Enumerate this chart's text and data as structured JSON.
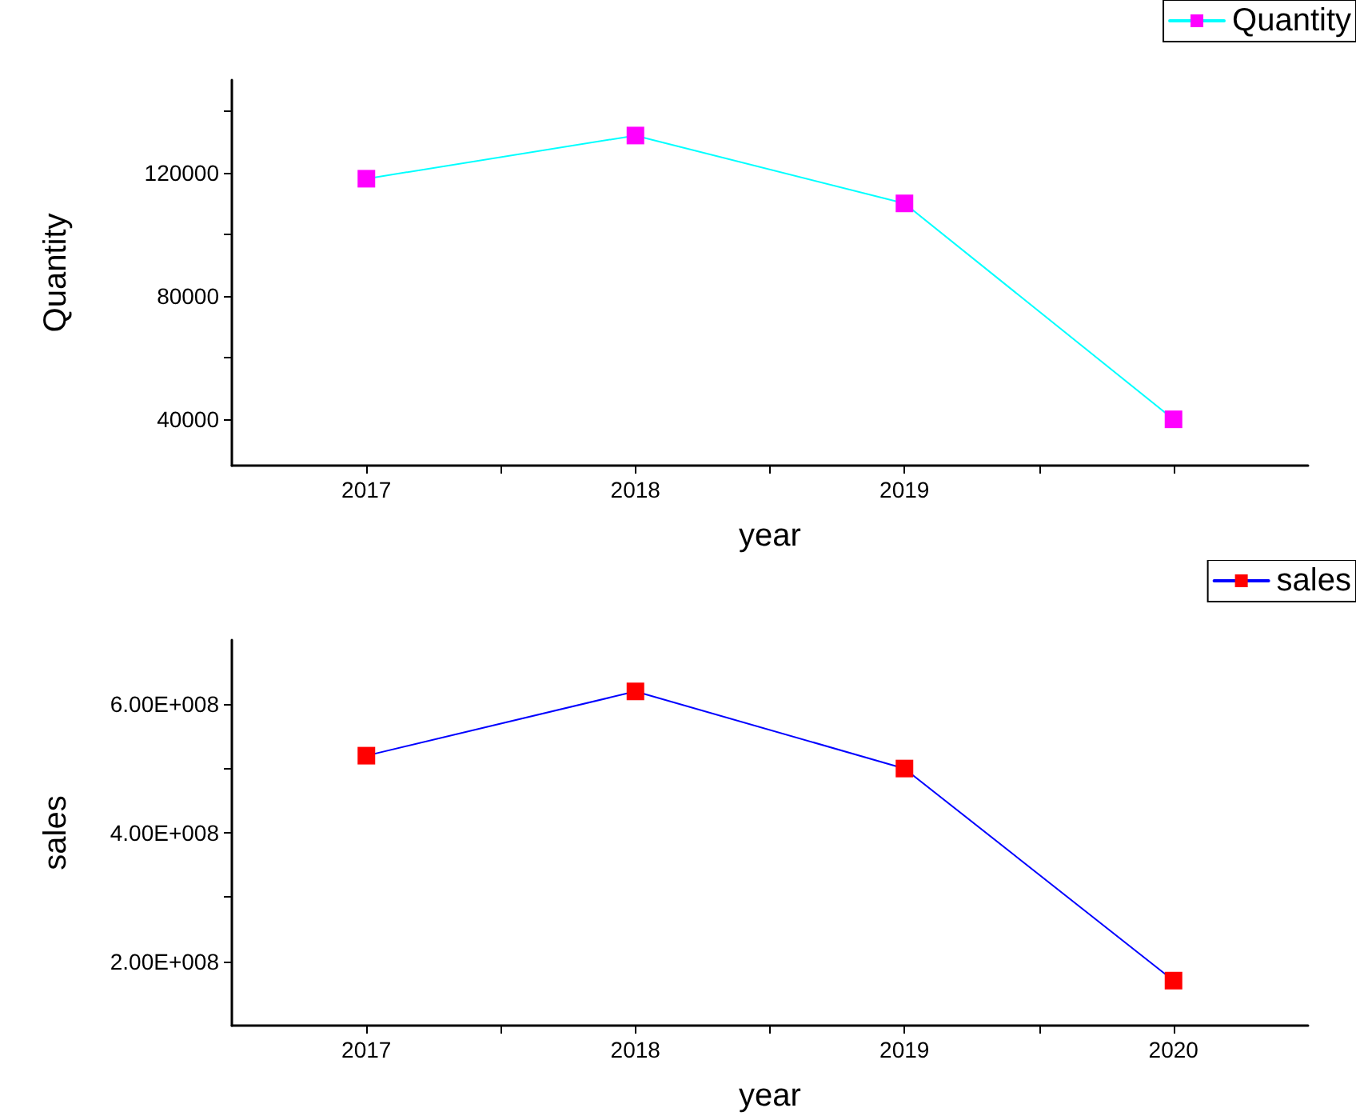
{
  "chart_data": [
    {
      "type": "line",
      "xlabel": "year",
      "ylabel": "Quantity",
      "x": [
        2017,
        2018,
        2019,
        2020
      ],
      "series": [
        {
          "name": "Quantity",
          "color": "#00ffff",
          "colors": [
            "#ff00ff",
            "#ff00ff",
            "#ff00ff",
            "#ff00ff"
          ],
          "values": [
            118000,
            132000,
            110000,
            40000
          ]
        }
      ],
      "xlim": [
        2016.5,
        2020.5
      ],
      "xticks": [
        2017,
        {
          "value": 2017.5,
          "label": null
        },
        2018,
        {
          "value": 2018.5,
          "label": null
        },
        2019,
        {
          "value": 2019.5,
          "label": null
        },
        {
          "value": 2020,
          "label": null
        }
      ],
      "ylim": [
        25000,
        150000
      ],
      "yticks": [
        40000,
        {
          "value": 60000,
          "label": null
        },
        80000,
        {
          "value": 100000,
          "label": null
        },
        120000,
        {
          "value": 140000,
          "label": null
        }
      ],
      "grid": false,
      "legend": "top right",
      "marker": "square",
      "line_style": "solid"
    },
    {
      "type": "line",
      "xlabel": "year",
      "ylabel": "sales",
      "x": [
        2017,
        2018,
        2019,
        2020
      ],
      "series": [
        {
          "name": "sales",
          "color": "#0000ff",
          "colors": [
            "#ff0000",
            "#ff0000",
            "#ff0000",
            "#ff0000"
          ],
          "values": [
            520000000,
            620000000,
            500000000,
            170000000
          ]
        }
      ],
      "xlim": [
        2016.5,
        2020.5
      ],
      "xticks": [
        2017,
        {
          "value": 2017.5,
          "label": null
        },
        2018,
        {
          "value": 2018.5,
          "label": null
        },
        2019,
        {
          "value": 2019.5,
          "label": null
        },
        2020
      ],
      "ylim": [
        100000000,
        700000000
      ],
      "yticks": [
        {
          "value": 200000000,
          "label": "2.00E+008"
        },
        {
          "value": 300000000,
          "label": null
        },
        {
          "value": 400000000,
          "label": "4.00E+008"
        },
        {
          "value": 500000000,
          "label": null
        },
        {
          "value": 600000000,
          "label": "6.00E+008"
        }
      ],
      "grid": false,
      "legend": "top right",
      "marker": "square",
      "line_style": "solid"
    }
  ]
}
